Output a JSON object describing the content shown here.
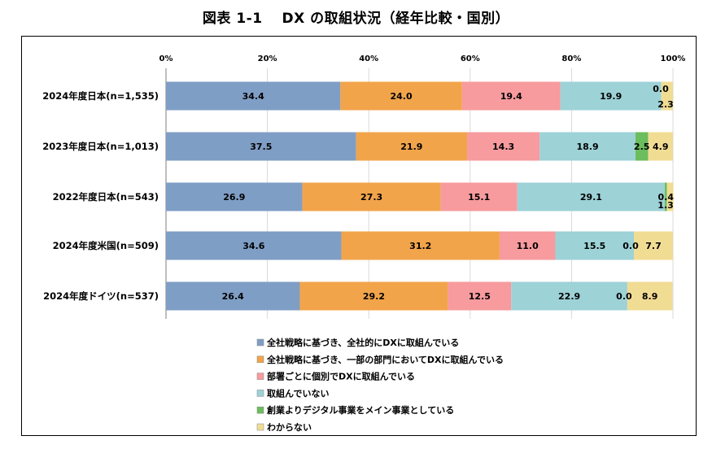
{
  "title": "図表 1-1　 DX の取組状況（経年比較・国別）",
  "chart_data": {
    "type": "bar",
    "orientation": "horizontal",
    "stacked": "percent",
    "categories": [
      "2024年度日本(n=1,535)",
      "2023年度日本(n=1,013)",
      "2022年度日本(n=543)",
      "2024年度米国(n=509)",
      "2024年度ドイツ(n=537)"
    ],
    "xlim": [
      0,
      100
    ],
    "xticks": [
      "0%",
      "20%",
      "40%",
      "60%",
      "80%",
      "100%"
    ],
    "grid": true,
    "legend_position": "bottom",
    "series": [
      {
        "name": "全社戦略に基づき、全社的にDXに取組んでいる",
        "color": "#7f9ec5",
        "values": [
          34.4,
          37.5,
          26.9,
          34.6,
          26.4
        ],
        "labels": [
          "34.4",
          "37.5",
          "26.9",
          "34.6",
          "26.4"
        ]
      },
      {
        "name": "全社戦略に基づき、一部の部門においてDXに取組んでいる",
        "color": "#f2a44b",
        "values": [
          24.0,
          21.9,
          27.3,
          31.2,
          29.2
        ],
        "labels": [
          "24.0",
          "21.9",
          "27.3",
          "31.2",
          "29.2"
        ]
      },
      {
        "name": "部署ごとに個別でDXに取組んでいる",
        "color": "#f79b9e",
        "values": [
          19.4,
          14.3,
          15.1,
          11.0,
          12.5
        ],
        "labels": [
          "19.4",
          "14.3",
          "15.1",
          "11.0",
          "12.5"
        ]
      },
      {
        "name": "取組んでいない",
        "color": "#9dd2d7",
        "values": [
          19.9,
          18.9,
          29.1,
          15.5,
          22.9
        ],
        "labels": [
          "19.9",
          "18.9",
          "29.1",
          "15.5",
          "22.9"
        ]
      },
      {
        "name": "創業よりデジタル事業をメイン事業としている",
        "color": "#6bbd5d",
        "values": [
          0.0,
          2.5,
          0.4,
          0.0,
          0.0
        ],
        "labels": [
          "0.0",
          "2.5",
          "0.4",
          "0.0",
          "0.0"
        ]
      },
      {
        "name": "わからない",
        "color": "#f1dc94",
        "values": [
          2.3,
          4.9,
          1.3,
          7.7,
          8.9
        ],
        "labels": [
          "2.3",
          "4.9",
          "1.3",
          "7.7",
          "8.9"
        ]
      }
    ]
  }
}
